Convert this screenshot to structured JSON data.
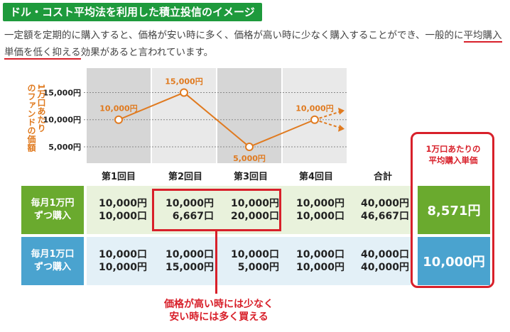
{
  "title": "ドル・コスト平均法を利用した積立投信のイメージ",
  "intro": {
    "before": "一定額を定期的に購入すると、価格が安い時に多く、価格が高い時に少なく購入することができ、一般的に",
    "underlined": "平均購入単価を低く抑える",
    "after": "効果があると言われています。"
  },
  "chart_data": {
    "type": "line",
    "categories": [
      "第1回目",
      "第2回目",
      "第3回目",
      "第4回目"
    ],
    "ylabel": "1万口あたりのファンドの価額",
    "yticks": [
      "15,000円",
      "10,000円",
      "5,000円"
    ],
    "values": [
      10000,
      15000,
      5000,
      10000
    ],
    "point_labels": [
      "10,000円",
      "15,000円",
      "5,000円",
      "10,000円"
    ],
    "ylim": [
      2000,
      19500
    ],
    "grid": true,
    "line_color": "#e07a1f",
    "band_colors": [
      "#d6d6d6",
      "#e9e9e9"
    ]
  },
  "table": {
    "columns": [
      "第1回目",
      "第2回目",
      "第3回目",
      "第4回目",
      "合計"
    ],
    "rows": [
      {
        "header": [
          "毎月1万円",
          "ずつ購入"
        ],
        "color": "#6aaa2e",
        "bg": "#e9f2dc",
        "cells": [
          [
            "10,000円",
            "10,000口"
          ],
          [
            "10,000円",
            "6,667口"
          ],
          [
            "10,000円",
            "20,000口"
          ],
          [
            "10,000円",
            "10,000口"
          ],
          [
            "40,000円",
            "46,667口"
          ]
        ],
        "result": "8,571円"
      },
      {
        "header": [
          "毎月1万口",
          "ずつ購入"
        ],
        "color": "#4aa3cf",
        "bg": "#e3f0f7",
        "cells": [
          [
            "10,000口",
            "10,000円"
          ],
          [
            "10,000口",
            "15,000円"
          ],
          [
            "10,000口",
            "5,000円"
          ],
          [
            "10,000口",
            "10,000円"
          ],
          [
            "40,000口",
            "40,000円"
          ]
        ],
        "result": "10,000円"
      }
    ]
  },
  "result_label": [
    "1万口あたりの",
    "平均購入単価"
  ],
  "callout": [
    "価格が高い時には少なく",
    "安い時には多く買える"
  ],
  "accent": "#d8202a"
}
